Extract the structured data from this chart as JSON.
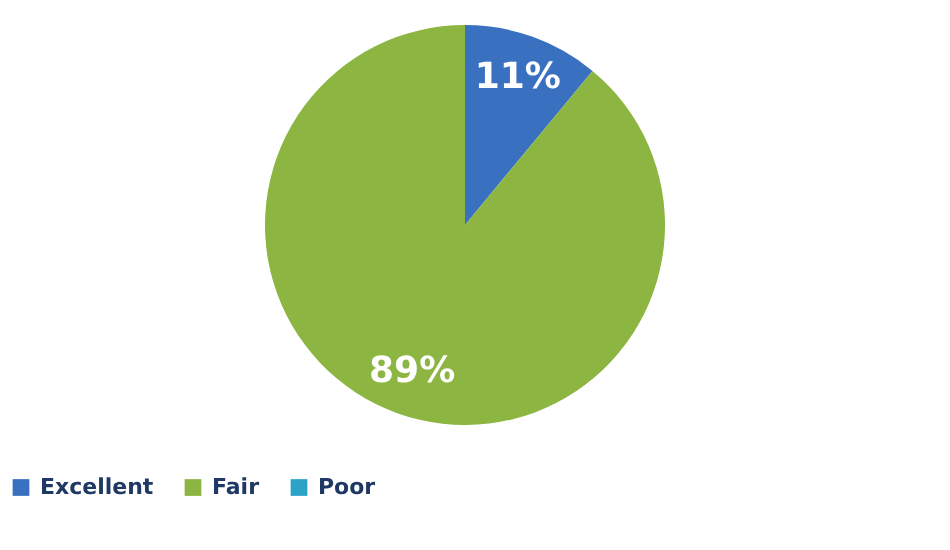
{
  "chart_data": {
    "type": "pie",
    "categories": [
      "Excellent",
      "Fair",
      "Poor"
    ],
    "values": [
      11,
      89,
      0
    ],
    "colors": [
      "#3a70c0",
      "#8cb542",
      "#2ba3c6"
    ],
    "value_labels": [
      "11%",
      "89%",
      null
    ],
    "legend": "bottom"
  }
}
